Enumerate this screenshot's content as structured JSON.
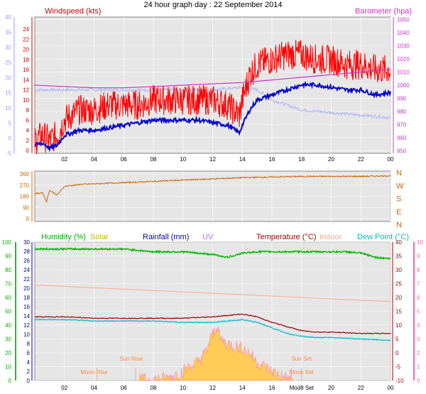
{
  "title": "24 hour graph day : 22 September 2014",
  "colors": {
    "windspeed": "#ff0000",
    "wind_avg": "#0000cc",
    "wind_gust_light": "#aab0ff",
    "barometer": "#cc33cc",
    "direction": "#cc6600",
    "humidity": "#00bb00",
    "solar": "#cccc00",
    "rainfall": "#000099",
    "uv": "#cc66ff",
    "temperature": "#990000",
    "indoor": "#ffaa88",
    "dewpoint": "#00cccc",
    "solar_fill": "#ffcc55"
  },
  "chart_data": [
    {
      "type": "line",
      "label_left": "Windspeed (kts)",
      "label_right": "Barometer (hpa)",
      "x_ticks": [
        "02",
        "04",
        "06",
        "08",
        "10",
        "12",
        "14",
        "16",
        "18",
        "20",
        "22",
        "00"
      ],
      "y_left_outer_ticks": [
        "-5",
        "0",
        "5",
        "10",
        "15",
        "20",
        "25",
        "30",
        "35",
        "40"
      ],
      "y_left_inner_ticks": [
        "0",
        "2",
        "4",
        "6",
        "8",
        "10",
        "12",
        "14",
        "16",
        "18",
        "20",
        "22",
        "24"
      ],
      "y_right_ticks": [
        "950",
        "960",
        "970",
        "980",
        "990",
        "1000",
        "1010",
        "1020",
        "1030",
        "1040",
        "1050"
      ],
      "ylim_left": [
        0,
        25
      ],
      "ylim_right": [
        948,
        1052
      ],
      "xlim": [
        0,
        24
      ],
      "series": [
        {
          "key": "gust",
          "points": [
            [
              0,
              2
            ],
            [
              0.5,
              3
            ],
            [
              1,
              2
            ],
            [
              1.5,
              3
            ],
            [
              2,
              6
            ],
            [
              3,
              8
            ],
            [
              4,
              8
            ],
            [
              5,
              9
            ],
            [
              6,
              9
            ],
            [
              7,
              9
            ],
            [
              8,
              10
            ],
            [
              9,
              10
            ],
            [
              10,
              10
            ],
            [
              11,
              10
            ],
            [
              12,
              10
            ],
            [
              13,
              9
            ],
            [
              13.8,
              7
            ],
            [
              14,
              10
            ],
            [
              14.5,
              15
            ],
            [
              15,
              17
            ],
            [
              16,
              18
            ],
            [
              17,
              19
            ],
            [
              18,
              19
            ],
            [
              19,
              18
            ],
            [
              20,
              18
            ],
            [
              21,
              17
            ],
            [
              22,
              17
            ],
            [
              23,
              16
            ],
            [
              24,
              16
            ]
          ]
        },
        {
          "key": "avg",
          "points": [
            [
              0,
              1
            ],
            [
              0.5,
              1.5
            ],
            [
              1,
              0.5
            ],
            [
              1.5,
              1
            ],
            [
              2,
              3
            ],
            [
              3,
              4
            ],
            [
              4,
              4
            ],
            [
              5,
              4.5
            ],
            [
              6,
              5
            ],
            [
              7,
              5.5
            ],
            [
              8,
              6
            ],
            [
              9,
              6
            ],
            [
              10,
              6
            ],
            [
              11,
              6
            ],
            [
              12,
              5.5
            ],
            [
              13,
              5
            ],
            [
              13.8,
              3.5
            ],
            [
              14,
              5
            ],
            [
              14.5,
              8
            ],
            [
              15,
              10
            ],
            [
              16,
              11
            ],
            [
              17,
              12
            ],
            [
              18,
              13
            ],
            [
              19,
              13
            ],
            [
              20,
              12.5
            ],
            [
              21,
              12
            ],
            [
              22,
              12
            ],
            [
              23,
              11
            ],
            [
              24,
              11.5
            ]
          ]
        },
        {
          "key": "light",
          "points": [
            [
              0,
              12
            ],
            [
              2,
              12
            ],
            [
              4,
              12
            ],
            [
              6,
              12
            ],
            [
              8,
              12
            ],
            [
              10,
              12
            ],
            [
              12,
              12
            ],
            [
              14,
              12.5
            ],
            [
              15,
              12
            ],
            [
              16,
              10
            ],
            [
              18,
              8
            ],
            [
              20,
              7.5
            ],
            [
              22,
              7
            ],
            [
              24,
              6.5
            ]
          ]
        },
        {
          "key": "baro",
          "points": [
            [
              0,
              1000
            ],
            [
              2,
              999
            ],
            [
              4,
              998
            ],
            [
              6,
              998
            ],
            [
              8,
              999
            ],
            [
              10,
              1000
            ],
            [
              12,
              1001
            ],
            [
              14,
              1002
            ],
            [
              16,
              1004
            ],
            [
              18,
              1006
            ],
            [
              20,
              1008
            ],
            [
              22,
              1010
            ],
            [
              24,
              1012
            ]
          ]
        }
      ]
    },
    {
      "type": "line",
      "label_right_letters": [
        "N",
        "W",
        "S",
        "E",
        "N"
      ],
      "y_ticks": [
        "0",
        "90",
        "180",
        "270",
        "360"
      ],
      "ylim": [
        0,
        360
      ],
      "xlim": [
        0,
        24
      ],
      "series": [
        {
          "key": "direction",
          "points": [
            [
              0,
              200
            ],
            [
              0.5,
              210
            ],
            [
              0.8,
              140
            ],
            [
              1,
              230
            ],
            [
              1.5,
              190
            ],
            [
              2,
              260
            ],
            [
              3,
              275
            ],
            [
              4,
              280
            ],
            [
              6,
              290
            ],
            [
              8,
              300
            ],
            [
              10,
              310
            ],
            [
              12,
              320
            ],
            [
              14,
              330
            ],
            [
              16,
              335
            ],
            [
              18,
              340
            ],
            [
              20,
              340
            ],
            [
              22,
              340
            ],
            [
              24,
              345
            ]
          ]
        }
      ]
    },
    {
      "type": "line",
      "labels": {
        "humidity": "Humidity  (%)",
        "solar": "Solar",
        "rainfall": "Rainfall (mm)",
        "uv": "UV",
        "temperature": "Temperature (°C)",
        "indoor": "Indoor",
        "dewpoint": "Dew Point (°C)"
      },
      "annotations": [
        "Moon Rise",
        "Sun Rise",
        "Sun Set",
        "Moon Set"
      ],
      "x_ticks": [
        "02",
        "04",
        "06",
        "08",
        "10",
        "12",
        "14",
        "16",
        "Mod8 Set",
        "20",
        "22",
        "00"
      ],
      "y_left_outer_ticks": [
        "0",
        "10",
        "20",
        "30",
        "40",
        "50",
        "60",
        "70",
        "80",
        "90",
        "100"
      ],
      "y_left_inner_ticks": [
        "0",
        "2",
        "4",
        "6",
        "8",
        "10",
        "12",
        "14",
        "16",
        "18",
        "20",
        "22",
        "24",
        "26",
        "28",
        "30"
      ],
      "y_right_inner_ticks": [
        "-10",
        "-5",
        "0",
        "5",
        "10",
        "15",
        "20",
        "25",
        "30",
        "35",
        "40"
      ],
      "y_right_outer_ticks": [
        "0",
        "1",
        "2",
        "3",
        "4",
        "5",
        "6",
        "7",
        "8",
        "9",
        "10"
      ],
      "ylim_humidity": [
        0,
        100
      ],
      "ylim_temp": [
        -10,
        40
      ],
      "xlim": [
        0,
        24
      ],
      "series": [
        {
          "key": "humidity",
          "points": [
            [
              0,
              95
            ],
            [
              2,
              95
            ],
            [
              4,
              95
            ],
            [
              6,
              95
            ],
            [
              7,
              94
            ],
            [
              8,
              93
            ],
            [
              10,
              93
            ],
            [
              12,
              91
            ],
            [
              13,
              89
            ],
            [
              14,
              92
            ],
            [
              15,
              93
            ],
            [
              16,
              93
            ],
            [
              18,
              93
            ],
            [
              20,
              93
            ],
            [
              21,
              93
            ],
            [
              22,
              92
            ],
            [
              23,
              89
            ],
            [
              24,
              88
            ]
          ]
        },
        {
          "key": "temperature",
          "points": [
            [
              0,
              13
            ],
            [
              2,
              13
            ],
            [
              4,
              12.5
            ],
            [
              6,
              12.5
            ],
            [
              8,
              12.5
            ],
            [
              10,
              12.5
            ],
            [
              12,
              13
            ],
            [
              13,
              13.5
            ],
            [
              14,
              14
            ],
            [
              15,
              13
            ],
            [
              16,
              11
            ],
            [
              17,
              9.5
            ],
            [
              18,
              8
            ],
            [
              19,
              7.5
            ],
            [
              20,
              7.5
            ],
            [
              22,
              7
            ],
            [
              24,
              7
            ]
          ]
        },
        {
          "key": "dewpoint",
          "points": [
            [
              0,
              12
            ],
            [
              2,
              12
            ],
            [
              4,
              11.5
            ],
            [
              6,
              11.5
            ],
            [
              8,
              11.5
            ],
            [
              10,
              11
            ],
            [
              12,
              11
            ],
            [
              13,
              11.5
            ],
            [
              14,
              12
            ],
            [
              15,
              11
            ],
            [
              16,
              9
            ],
            [
              17,
              7
            ],
            [
              18,
              6
            ],
            [
              19,
              5.5
            ],
            [
              20,
              5.5
            ],
            [
              22,
              5
            ],
            [
              24,
              4.5
            ]
          ]
        },
        {
          "key": "indoor",
          "points": [
            [
              0,
              24.5
            ],
            [
              2,
              24
            ],
            [
              4,
              23.5
            ],
            [
              6,
              23
            ],
            [
              8,
              22.5
            ],
            [
              10,
              22
            ],
            [
              12,
              21.5
            ],
            [
              14,
              21
            ],
            [
              16,
              20.5
            ],
            [
              18,
              20
            ],
            [
              20,
              19.5
            ],
            [
              22,
              19
            ],
            [
              24,
              18.5
            ]
          ]
        },
        {
          "key": "solar",
          "points": [
            [
              7,
              0
            ],
            [
              9,
              0.5
            ],
            [
              10,
              2
            ],
            [
              11,
              4
            ],
            [
              11.5,
              6
            ],
            [
              12,
              10
            ],
            [
              12.3,
              12
            ],
            [
              12.5,
              9
            ],
            [
              13,
              8
            ],
            [
              14,
              7
            ],
            [
              14.5,
              6
            ],
            [
              15,
              4
            ],
            [
              16,
              2
            ],
            [
              17,
              0.5
            ],
            [
              17.5,
              0
            ]
          ]
        }
      ]
    }
  ]
}
